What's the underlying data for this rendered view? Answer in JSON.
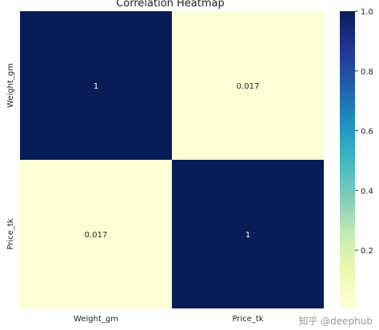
{
  "chart_data": {
    "type": "heatmap",
    "title": "Correlation Heatmap",
    "x_labels": [
      "Weight_gm",
      "Price_tk"
    ],
    "y_labels": [
      "Weight_gm",
      "Price_tk"
    ],
    "values": [
      [
        1,
        0.017
      ],
      [
        0.017,
        1
      ]
    ],
    "annotations": [
      [
        "1",
        "0.017"
      ],
      [
        "0.017",
        "1"
      ]
    ],
    "colorbar": {
      "range": [
        0,
        1
      ],
      "ticks": [
        0.2,
        0.4,
        0.6,
        0.8,
        1.0
      ],
      "tick_labels": [
        "0.2",
        "0.4",
        "0.6",
        "0.8",
        "1.0"
      ],
      "colormap": "YlGnBu",
      "stops": [
        "#ffffd9",
        "#edf8b1",
        "#c7e9b4",
        "#7fcdbb",
        "#41b6c4",
        "#1d91c0",
        "#225ea8",
        "#253494",
        "#081d58"
      ]
    }
  },
  "watermark": "知乎 @deephub"
}
